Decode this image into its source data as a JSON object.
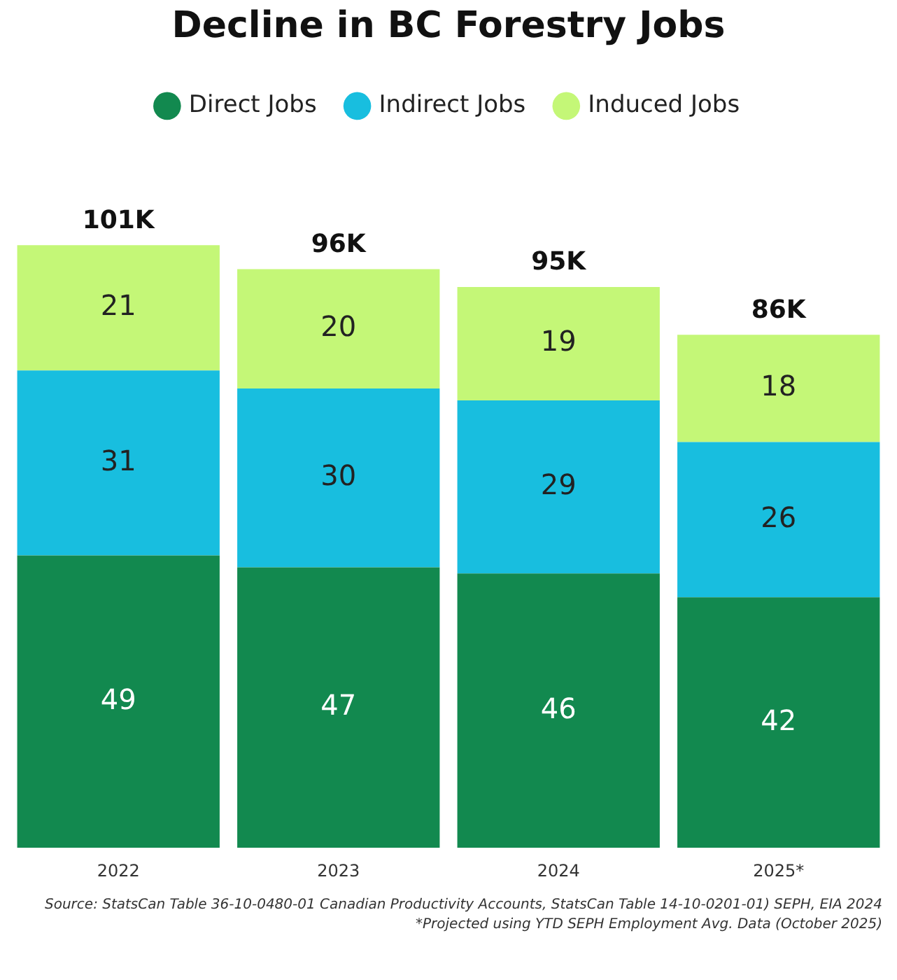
{
  "chart_data": {
    "type": "bar",
    "title": "Decline in BC Forestry Jobs",
    "categories": [
      "2022",
      "2023",
      "2024",
      "2025*"
    ],
    "series": [
      {
        "name": "Direct Jobs",
        "color": "#12894f",
        "values": [
          49,
          47,
          46,
          42
        ]
      },
      {
        "name": "Indirect Jobs",
        "color": "#18bedf",
        "values": [
          31,
          30,
          29,
          26
        ]
      },
      {
        "name": "Induced Jobs",
        "color": "#c4f777",
        "values": [
          21,
          20,
          19,
          18
        ]
      }
    ],
    "stacked": true,
    "data_labels": true,
    "totals": [
      "101K",
      "96K",
      "95K",
      "86K"
    ],
    "legend": "top",
    "grid": false,
    "annotations": [
      "Source: StatsCan Table 36-10-0480-01 Canadian Productivity Accounts, StatsCan Table 14-10-0201-01) SEPH, EIA 2024",
      "*Projected using YTD SEPH Employment Avg. Data (October 2025)"
    ]
  }
}
